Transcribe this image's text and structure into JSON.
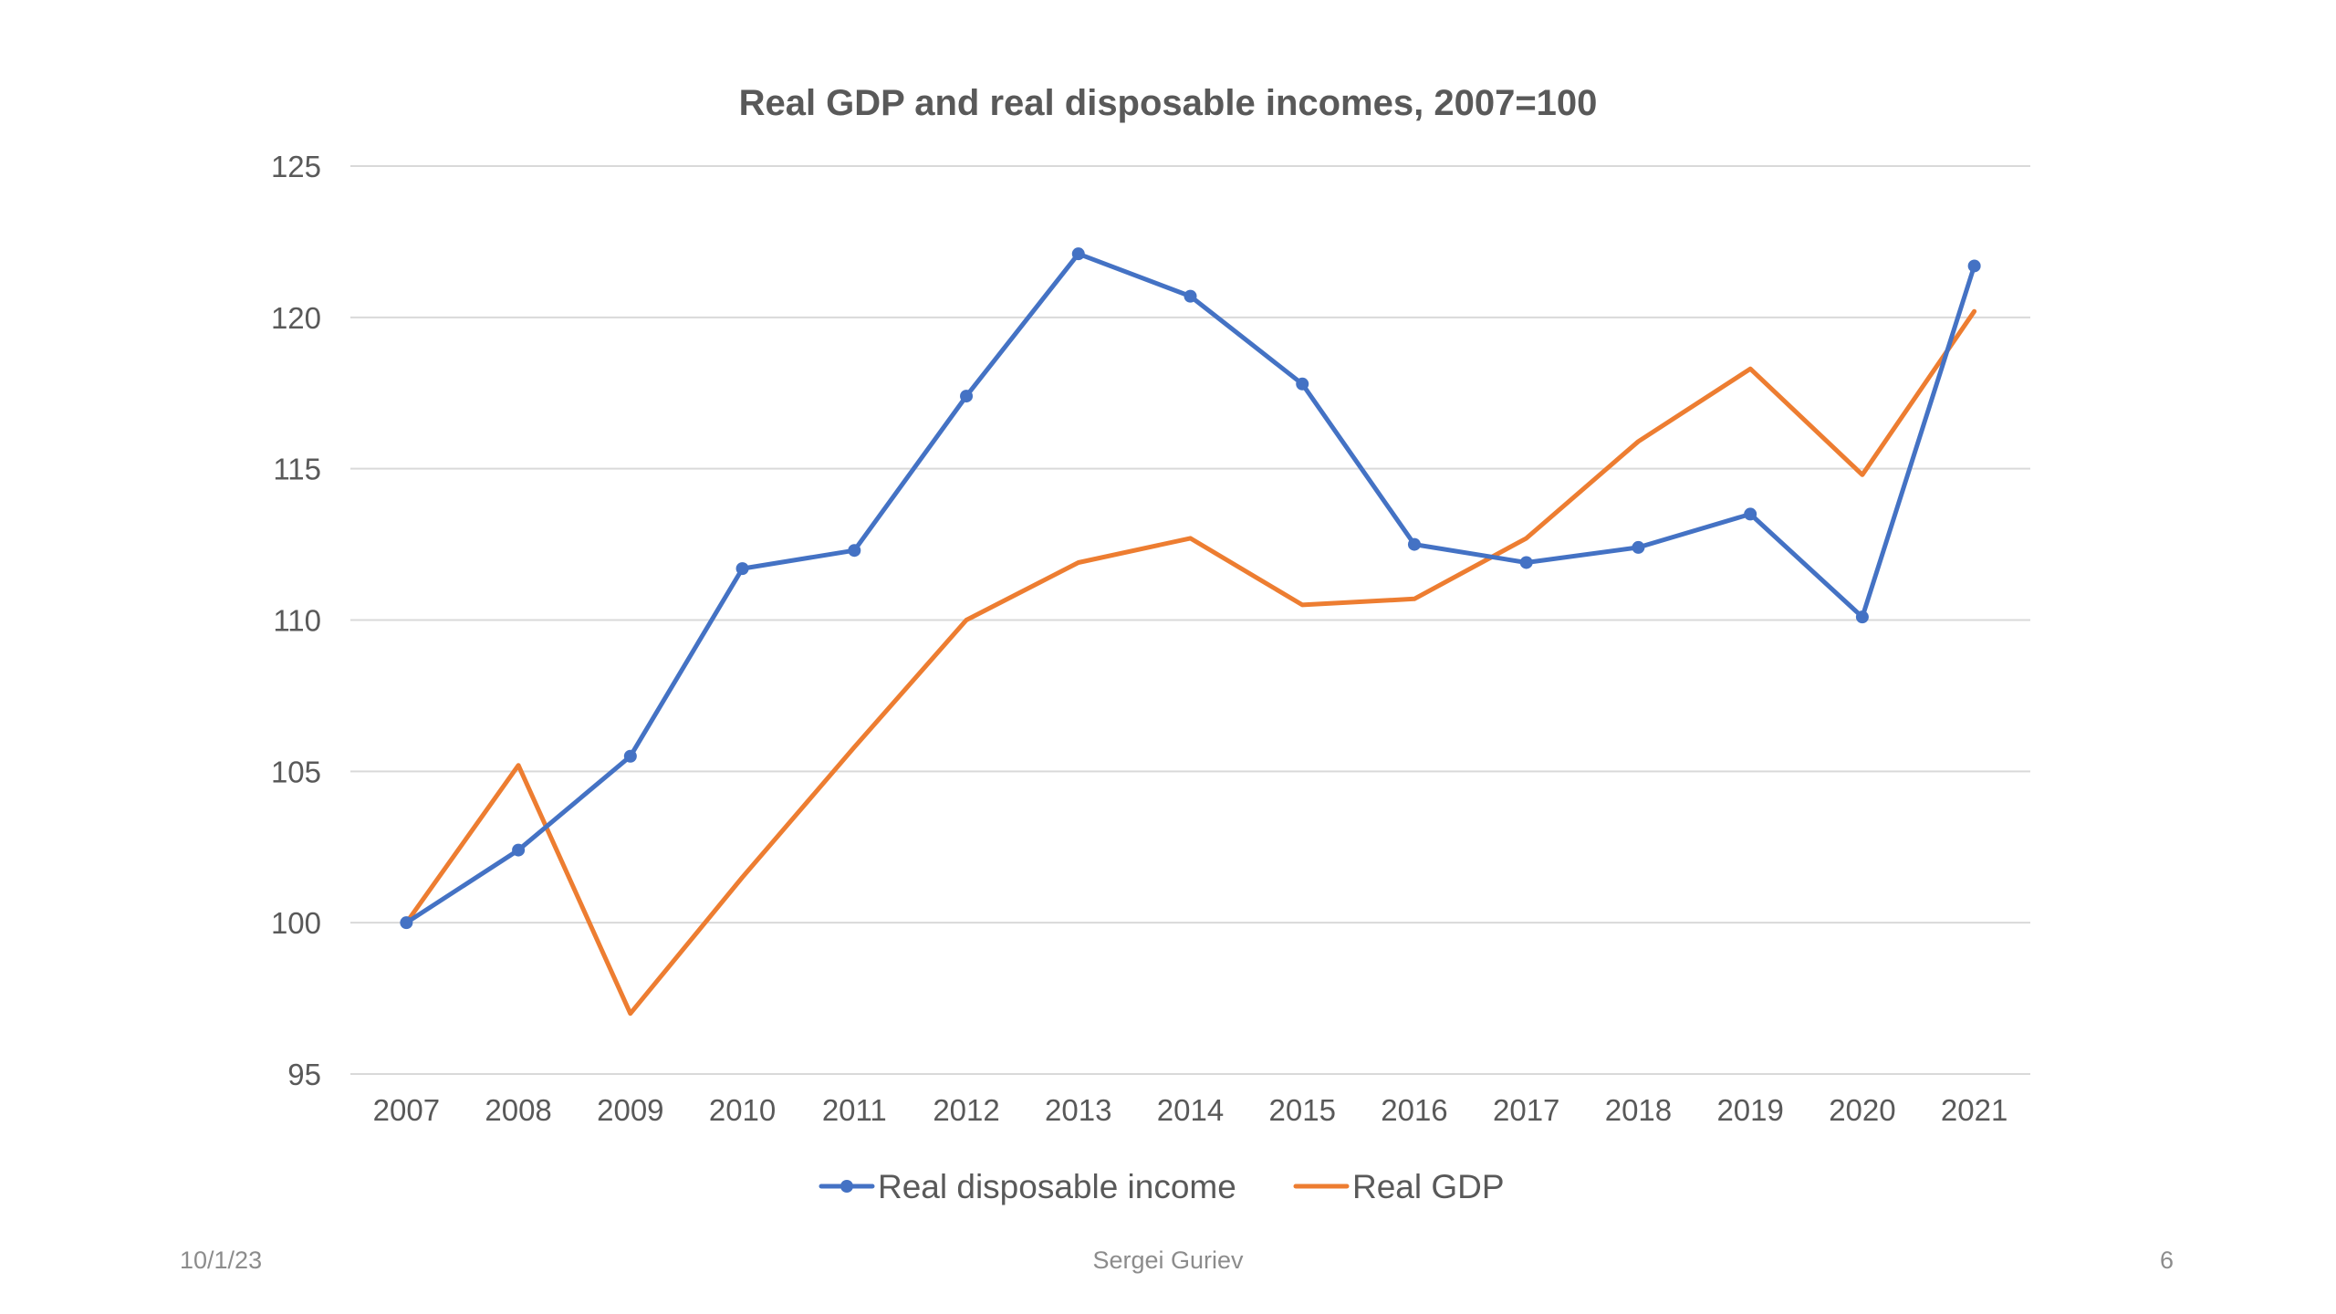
{
  "footer": {
    "date": "10/1/23",
    "author": "Sergei Guriev",
    "page_number": "6"
  },
  "chart_data": {
    "type": "line",
    "title": "Real GDP and real disposable incomes, 2007=100",
    "xlabel": "",
    "ylabel": "",
    "categories": [
      "2007",
      "2008",
      "2009",
      "2010",
      "2011",
      "2012",
      "2013",
      "2014",
      "2015",
      "2016",
      "2017",
      "2018",
      "2019",
      "2020",
      "2021"
    ],
    "ylim": [
      95,
      125
    ],
    "yticks": [
      95,
      100,
      105,
      110,
      115,
      120,
      125
    ],
    "grid": "horizontal",
    "legend_position": "bottom",
    "series": [
      {
        "name": "Real disposable income",
        "color": "#4472C4",
        "markers": true,
        "values": [
          100.0,
          102.4,
          105.5,
          111.7,
          112.3,
          117.4,
          122.1,
          120.7,
          117.8,
          112.5,
          111.9,
          112.4,
          113.5,
          110.1,
          121.7
        ]
      },
      {
        "name": "Real GDP",
        "color": "#ED7D31",
        "markers": false,
        "values": [
          100.0,
          105.2,
          97.0,
          101.5,
          105.8,
          110.0,
          111.9,
          112.7,
          110.5,
          110.7,
          112.7,
          115.9,
          118.3,
          114.8,
          120.2
        ]
      }
    ]
  }
}
